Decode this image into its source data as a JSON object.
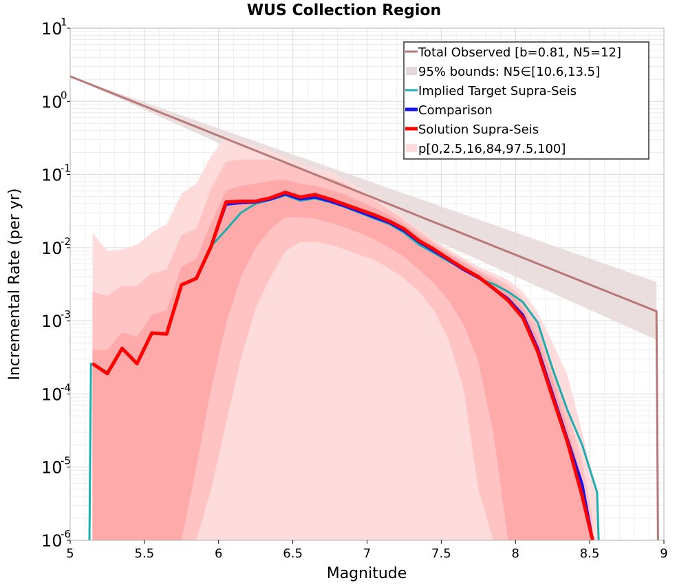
{
  "chart_data": {
    "type": "line",
    "title": "WUS Collection Region",
    "xlabel": "Magnitude",
    "ylabel": "Incremental Rate (per yr)",
    "xlim": [
      5,
      9
    ],
    "ylim_log10": [
      -6,
      1
    ],
    "y_scale": "log",
    "grid": true,
    "x_ticks": [
      {
        "value": 5,
        "label": "5"
      },
      {
        "value": 5.5,
        "label": "5.5"
      },
      {
        "value": 6,
        "label": "6"
      },
      {
        "value": 6.5,
        "label": "6.5"
      },
      {
        "value": 7,
        "label": "7"
      },
      {
        "value": 7.5,
        "label": "7.5"
      },
      {
        "value": 8,
        "label": "8"
      },
      {
        "value": 8.5,
        "label": "8.5"
      },
      {
        "value": 9,
        "label": "9"
      }
    ],
    "y_ticks": [
      {
        "exp": 1,
        "base": "10",
        "sup": "1"
      },
      {
        "exp": 0,
        "base": "10",
        "sup": "0"
      },
      {
        "exp": -1,
        "base": "10",
        "sup": "-1"
      },
      {
        "exp": -2,
        "base": "10",
        "sup": "-2"
      },
      {
        "exp": -3,
        "base": "10",
        "sup": "-3"
      },
      {
        "exp": -4,
        "base": "10",
        "sup": "-4"
      },
      {
        "exp": -5,
        "base": "10",
        "sup": "-5"
      },
      {
        "exp": -6,
        "base": "10",
        "sup": "-6"
      }
    ],
    "legend": {
      "position": "top-right",
      "entries": [
        {
          "label": "Total Observed [b=0.81, N5=12]",
          "color": "#b87878",
          "style": "line"
        },
        {
          "label": "95% bounds: N5∈[10.6,13.5]",
          "color": "#e6d8d8",
          "style": "fill"
        },
        {
          "label": "Implied Target Supra-Seis",
          "color": "#1aaeae",
          "style": "line"
        },
        {
          "label": "Comparison",
          "color": "#1414f0",
          "style": "thick-line"
        },
        {
          "label": "Solution Supra-Seis",
          "color": "#ff0000",
          "style": "thick-line"
        },
        {
          "label": "p[0,2.5,16,84,97.5,100]",
          "color": "#ffdcdc",
          "style": "fill"
        }
      ]
    },
    "series": [
      {
        "name": "Total Observed [b=0.81, N5=12]",
        "color": "#b87878",
        "x": [
          5.0,
          8.95,
          8.96
        ],
        "y": [
          2.2,
          0.00135,
          1e-06
        ]
      },
      {
        "name": "Implied Target Supra-Seis",
        "color": "#1aaeae",
        "x": [
          5.13,
          5.14,
          5.25,
          5.35,
          5.45,
          5.55,
          5.65,
          5.75,
          5.85,
          5.95,
          6.05,
          6.15,
          6.25,
          6.35,
          6.45,
          6.55,
          6.65,
          6.75,
          6.85,
          6.95,
          7.05,
          7.15,
          7.25,
          7.35,
          7.45,
          7.55,
          7.65,
          7.75,
          7.85,
          7.95,
          8.05,
          8.15,
          8.25,
          8.35,
          8.45,
          8.55,
          8.56
        ],
        "y": [
          1e-06,
          0.00026,
          0.0002,
          0.00042,
          0.00026,
          0.00068,
          0.00066,
          0.0031,
          0.0038,
          0.0105,
          0.0175,
          0.03,
          0.04,
          0.045,
          0.052,
          0.044,
          0.047,
          0.042,
          0.036,
          0.03,
          0.025,
          0.021,
          0.016,
          0.011,
          0.0085,
          0.0065,
          0.005,
          0.0038,
          0.0032,
          0.0025,
          0.0018,
          0.00095,
          0.00022,
          6e-05,
          2e-05,
          4.5e-06,
          1e-06
        ]
      },
      {
        "name": "Comparison",
        "color": "#1414f0",
        "x": [
          5.15,
          5.25,
          5.35,
          5.45,
          5.55,
          5.65,
          5.75,
          5.85,
          5.95,
          6.05,
          6.15,
          6.25,
          6.35,
          6.45,
          6.55,
          6.65,
          6.75,
          6.85,
          6.95,
          7.05,
          7.15,
          7.25,
          7.35,
          7.45,
          7.55,
          7.65,
          7.75,
          7.85,
          7.95,
          8.05,
          8.15,
          8.25,
          8.35,
          8.45,
          8.52
        ],
        "y": [
          0.00026,
          0.00019,
          0.00042,
          0.00026,
          0.00068,
          0.00066,
          0.0031,
          0.0038,
          0.0105,
          0.039,
          0.041,
          0.042,
          0.046,
          0.054,
          0.046,
          0.049,
          0.043,
          0.037,
          0.031,
          0.026,
          0.022,
          0.017,
          0.012,
          0.009,
          0.0068,
          0.005,
          0.0039,
          0.0028,
          0.002,
          0.0012,
          0.00042,
          0.0001,
          2.4e-05,
          5.8e-06,
          1e-06
        ]
      },
      {
        "name": "Solution Supra-Seis",
        "color": "#ff0000",
        "x": [
          5.15,
          5.25,
          5.35,
          5.45,
          5.55,
          5.65,
          5.75,
          5.85,
          5.95,
          6.05,
          6.15,
          6.25,
          6.35,
          6.45,
          6.55,
          6.65,
          6.75,
          6.85,
          6.95,
          7.05,
          7.15,
          7.25,
          7.35,
          7.45,
          7.55,
          7.65,
          7.75,
          7.85,
          7.95,
          8.05,
          8.15,
          8.25,
          8.35,
          8.45,
          8.52
        ],
        "y": [
          0.00026,
          0.00019,
          0.00042,
          0.00026,
          0.00068,
          0.00066,
          0.0031,
          0.0038,
          0.0105,
          0.042,
          0.043,
          0.043,
          0.048,
          0.057,
          0.049,
          0.053,
          0.046,
          0.039,
          0.033,
          0.028,
          0.023,
          0.018,
          0.0125,
          0.0095,
          0.007,
          0.0052,
          0.004,
          0.0028,
          0.0019,
          0.0011,
          0.00038,
          9e-05,
          2.2e-05,
          4e-06,
          1e-06
        ]
      }
    ],
    "bands": [
      {
        "name": "95% bounds: N5∈[10.6,13.5]",
        "color": "#e6d8d8",
        "opacity": 0.85,
        "x": [
          5.0,
          8.95
        ],
        "lower": [
          2.2,
          0.00055
        ],
        "upper": [
          2.2,
          0.0034
        ]
      },
      {
        "name": "p0-p100",
        "color": "#ffdcdc",
        "opacity": 1,
        "x": [
          5.15,
          5.25,
          5.35,
          5.45,
          5.55,
          5.65,
          5.75,
          5.85,
          5.95,
          6.05,
          6.15,
          6.25,
          6.35,
          6.45,
          6.55,
          6.65,
          6.75,
          6.85,
          6.95,
          7.05,
          7.15,
          7.25,
          7.35,
          7.45,
          7.55,
          7.65,
          7.75,
          7.85,
          7.95,
          8.05,
          8.15,
          8.25,
          8.35,
          8.45,
          8.55
        ],
        "lower": [
          1e-06,
          1e-06,
          1e-06,
          1e-06,
          1e-06,
          1e-06,
          1e-06,
          1e-06,
          1e-06,
          1e-06,
          1e-06,
          1e-06,
          1e-06,
          1e-06,
          1e-06,
          1e-06,
          1e-06,
          1e-06,
          1e-06,
          1e-06,
          1e-06,
          1e-06,
          1e-06,
          1e-06,
          1e-06,
          1e-06,
          1e-06,
          1e-06,
          1e-06,
          1e-06,
          1e-06,
          1e-06,
          1e-06,
          1e-06,
          1e-06
        ],
        "upper": [
          0.016,
          0.009,
          0.0095,
          0.011,
          0.016,
          0.021,
          0.055,
          0.075,
          0.18,
          0.32,
          0.28,
          0.24,
          0.21,
          0.17,
          0.14,
          0.12,
          0.11,
          0.085,
          0.065,
          0.048,
          0.036,
          0.026,
          0.018,
          0.013,
          0.0095,
          0.0072,
          0.0055,
          0.0045,
          0.0036,
          0.0025,
          0.0013,
          0.0005,
          0.00018,
          3e-05,
          4e-06
        ]
      },
      {
        "name": "p2.5-p97.5",
        "color": "#ffc3c3",
        "opacity": 1,
        "x": [
          5.15,
          5.25,
          5.35,
          5.45,
          5.55,
          5.65,
          5.75,
          5.85,
          5.95,
          6.05,
          6.15,
          6.25,
          6.35,
          6.45,
          6.55,
          6.65,
          6.75,
          6.85,
          6.95,
          7.05,
          7.15,
          7.25,
          7.35,
          7.45,
          7.55,
          7.65,
          7.75,
          7.85,
          7.95,
          8.05,
          8.15,
          8.25,
          8.35,
          8.45,
          8.52
        ],
        "lower": [
          1e-06,
          1e-06,
          1e-06,
          1e-06,
          1e-06,
          1e-06,
          1e-06,
          1e-06,
          5e-06,
          4e-05,
          0.0003,
          0.0015,
          0.004,
          0.009,
          0.012,
          0.012,
          0.011,
          0.0095,
          0.008,
          0.0068,
          0.0052,
          0.0038,
          0.0025,
          0.0014,
          0.00055,
          0.00012,
          5e-06,
          1e-06,
          1e-06,
          1e-06,
          1e-06,
          1e-06,
          1e-06,
          1e-06,
          1e-06
        ],
        "upper": [
          0.0025,
          0.0022,
          0.003,
          0.003,
          0.0045,
          0.005,
          0.015,
          0.018,
          0.065,
          0.15,
          0.16,
          0.16,
          0.16,
          0.14,
          0.12,
          0.1,
          0.09,
          0.075,
          0.058,
          0.044,
          0.033,
          0.024,
          0.017,
          0.012,
          0.0087,
          0.0066,
          0.005,
          0.004,
          0.0031,
          0.002,
          0.00085,
          0.00025,
          6e-05,
          1.2e-05,
          2e-06
        ]
      },
      {
        "name": "p16-p84",
        "color": "#ffaaaa",
        "opacity": 1,
        "x": [
          5.15,
          5.25,
          5.35,
          5.45,
          5.55,
          5.65,
          5.75,
          5.85,
          5.95,
          6.05,
          6.15,
          6.25,
          6.35,
          6.45,
          6.55,
          6.65,
          6.75,
          6.85,
          6.95,
          7.05,
          7.15,
          7.25,
          7.35,
          7.45,
          7.55,
          7.65,
          7.75,
          7.85,
          7.95,
          8.05,
          8.15,
          8.25,
          8.35,
          8.45,
          8.52
        ],
        "lower": [
          1e-06,
          1e-06,
          1e-06,
          1e-06,
          1e-06,
          1e-06,
          1e-06,
          1e-05,
          0.00012,
          0.0009,
          0.004,
          0.01,
          0.018,
          0.026,
          0.026,
          0.025,
          0.022,
          0.019,
          0.016,
          0.013,
          0.01,
          0.0075,
          0.005,
          0.0033,
          0.0019,
          0.0009,
          0.00028,
          3e-05,
          1e-06,
          1e-06,
          1e-06,
          1e-06,
          1e-06,
          1e-06,
          1e-06
        ],
        "upper": [
          0.0004,
          0.0004,
          0.0007,
          0.0006,
          0.0012,
          0.0014,
          0.0055,
          0.007,
          0.022,
          0.06,
          0.07,
          0.075,
          0.082,
          0.085,
          0.075,
          0.07,
          0.062,
          0.053,
          0.043,
          0.035,
          0.028,
          0.021,
          0.015,
          0.011,
          0.0082,
          0.0062,
          0.0047,
          0.0035,
          0.0026,
          0.0015,
          0.0006,
          0.00016,
          3.5e-05,
          7e-06,
          1e-06
        ]
      }
    ]
  }
}
